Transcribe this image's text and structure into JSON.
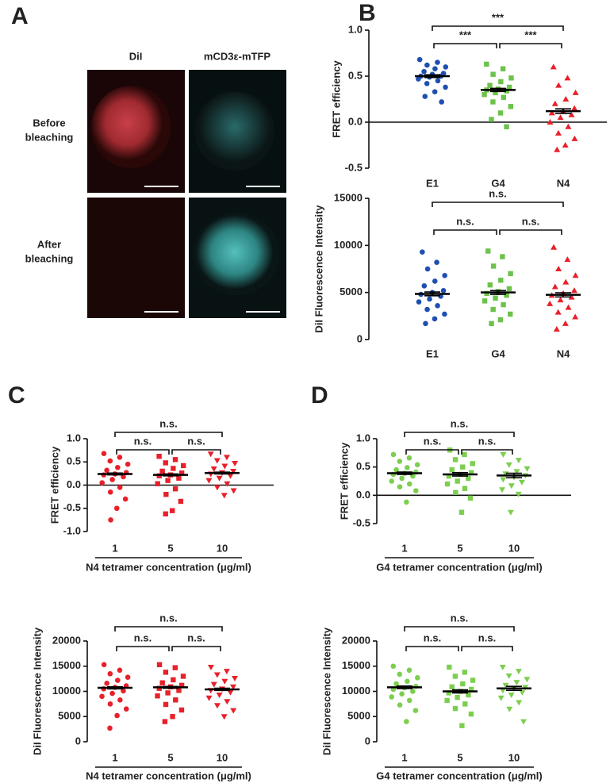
{
  "panel_labels": [
    "A",
    "B",
    "C",
    "D"
  ],
  "panel_a": {
    "columns": [
      "DiI",
      "mCD3ε-mTFP"
    ],
    "rows": [
      [
        "Before",
        "bleaching"
      ],
      [
        "After",
        "bleaching"
      ]
    ]
  },
  "chart_data": [
    {
      "type": "strip",
      "ylabel": "FRET efficiency",
      "categories": [
        "E1",
        "G4",
        "N4"
      ],
      "colors": [
        "#1f4fb0",
        "#6cc24a",
        "#e8202a"
      ],
      "markers": [
        "circle",
        "square",
        "triangle"
      ],
      "points": [
        [
          0.68,
          0.65,
          0.62,
          0.6,
          0.58,
          0.55,
          0.53,
          0.52,
          0.5,
          0.5,
          0.49,
          0.47,
          0.45,
          0.42,
          0.38,
          0.33,
          0.28,
          0.22
        ],
        [
          0.63,
          0.58,
          0.52,
          0.48,
          0.44,
          0.4,
          0.38,
          0.36,
          0.35,
          0.34,
          0.32,
          0.3,
          0.27,
          0.22,
          0.17,
          0.1,
          0.03,
          -0.05
        ],
        [
          0.6,
          0.48,
          0.4,
          0.32,
          0.25,
          0.2,
          0.15,
          0.12,
          0.1,
          0.08,
          0.05,
          0.0,
          -0.05,
          -0.12,
          -0.18,
          -0.25,
          -0.3
        ]
      ],
      "means": [
        0.5,
        0.35,
        0.12
      ],
      "sem": [
        0.015,
        0.017,
        0.025
      ],
      "ylim": [
        -0.5,
        1.0
      ],
      "yticks": [
        -0.5,
        {
          "value": 0,
          "label": "0.0"
        },
        0.5,
        {
          "value": 1,
          "label": "1.0"
        }
      ],
      "zero_line": true,
      "brackets": [
        {
          "from": 0,
          "to": 2,
          "label": "***"
        },
        {
          "from": 0,
          "to": 1,
          "label": "***"
        },
        {
          "from": 1,
          "to": 2,
          "label": "***"
        }
      ]
    },
    {
      "type": "strip",
      "ylabel": "DiI Fluorescence Intensity",
      "categories": [
        "E1",
        "G4",
        "N4"
      ],
      "colors": [
        "#1f4fb0",
        "#6cc24a",
        "#e8202a"
      ],
      "markers": [
        "circle",
        "square",
        "triangle"
      ],
      "points": [
        [
          9300,
          8200,
          7500,
          6800,
          6200,
          5700,
          5200,
          5000,
          4800,
          4600,
          4300,
          4000,
          3600,
          3200,
          2700,
          2200,
          1700
        ],
        [
          9400,
          8800,
          7800,
          7000,
          6300,
          5800,
          5400,
          5100,
          4900,
          4700,
          4400,
          4100,
          3700,
          3200,
          2700,
          2100,
          1700
        ],
        [
          9800,
          8500,
          7500,
          6800,
          6100,
          5600,
          5200,
          4900,
          4700,
          4500,
          4200,
          3800,
          3400,
          2900,
          2400,
          1700,
          1100
        ]
      ],
      "means": [
        4850,
        5000,
        4750
      ],
      "sem": [
        200,
        200,
        220
      ],
      "ylim": [
        0,
        15000
      ],
      "yticks": [
        0,
        5000,
        10000,
        15000
      ],
      "zero_line": false,
      "brackets": [
        {
          "from": 0,
          "to": 2,
          "label": "n.s."
        },
        {
          "from": 0,
          "to": 1,
          "label": "n.s."
        },
        {
          "from": 1,
          "to": 2,
          "label": "n.s."
        }
      ]
    },
    {
      "type": "strip",
      "ylabel": "FRET efficiency",
      "xlabel": "N4 tetramer concentration (μg/ml)",
      "categories": [
        "1",
        "5",
        "10"
      ],
      "colors": [
        "#e8202a",
        "#e8202a",
        "#e8202a"
      ],
      "markers": [
        "circle",
        "square",
        "triangle-down"
      ],
      "points": [
        [
          0.68,
          0.6,
          0.52,
          0.45,
          0.38,
          0.32,
          0.27,
          0.24,
          0.22,
          0.18,
          0.12,
          0.05,
          -0.05,
          -0.15,
          -0.3,
          -0.5,
          -0.75
        ],
        [
          0.62,
          0.55,
          0.48,
          0.42,
          0.36,
          0.3,
          0.26,
          0.22,
          0.2,
          0.15,
          0.1,
          0.03,
          -0.08,
          -0.2,
          -0.35,
          -0.55,
          -0.62
        ],
        [
          0.67,
          0.6,
          0.53,
          0.47,
          0.41,
          0.35,
          0.3,
          0.27,
          0.24,
          0.2,
          0.15,
          0.1,
          0.03,
          -0.05,
          -0.12,
          -0.22
        ]
      ],
      "means": [
        0.24,
        0.22,
        0.26
      ],
      "sem": [
        0.02,
        0.02,
        0.02
      ],
      "ylim": [
        -1.0,
        1.0
      ],
      "yticks": [
        {
          "value": -1,
          "label": "-1.0"
        },
        -0.5,
        {
          "value": 0,
          "label": "0.0"
        },
        0.5,
        {
          "value": 1,
          "label": "1.0"
        }
      ],
      "zero_line": true,
      "brackets": [
        {
          "from": 0,
          "to": 2,
          "label": "n.s."
        },
        {
          "from": 0,
          "to": 1,
          "label": "n.s."
        },
        {
          "from": 1,
          "to": 2,
          "label": "n.s."
        }
      ]
    },
    {
      "type": "strip",
      "ylabel": "DiI Fluorescence Intensity",
      "xlabel": "N4 tetramer concentration (μg/ml)",
      "categories": [
        "1",
        "5",
        "10"
      ],
      "colors": [
        "#e8202a",
        "#e8202a",
        "#e8202a"
      ],
      "markers": [
        "circle",
        "square",
        "triangle-down"
      ],
      "points": [
        [
          15300,
          14200,
          13500,
          12800,
          12200,
          11600,
          11100,
          10800,
          10500,
          10100,
          9600,
          9000,
          8300,
          7500,
          6500,
          5200,
          2700
        ],
        [
          15300,
          14700,
          13800,
          13000,
          12300,
          11700,
          11200,
          10900,
          10600,
          10200,
          9700,
          9100,
          8300,
          7400,
          6300,
          5000,
          4000
        ],
        [
          14800,
          14000,
          13300,
          12600,
          12000,
          11400,
          10900,
          10500,
          10200,
          9800,
          9300,
          8700,
          8000,
          7200,
          6200,
          5000
        ]
      ],
      "means": [
        10700,
        10800,
        10400
      ],
      "sem": [
        200,
        180,
        220
      ],
      "ylim": [
        0,
        20000
      ],
      "yticks": [
        0,
        5000,
        10000,
        15000,
        20000
      ],
      "zero_line": false,
      "brackets": [
        {
          "from": 0,
          "to": 2,
          "label": "n.s."
        },
        {
          "from": 0,
          "to": 1,
          "label": "n.s."
        },
        {
          "from": 1,
          "to": 2,
          "label": "n.s."
        }
      ]
    },
    {
      "type": "strip",
      "ylabel": "FRET efficiency",
      "xlabel": "G4 tetramer concentration (μg/ml)",
      "categories": [
        "1",
        "5",
        "10"
      ],
      "colors": [
        "#7ccf4e",
        "#7ccf4e",
        "#7ccf4e"
      ],
      "markers": [
        "circle",
        "square",
        "triangle-down"
      ],
      "points": [
        [
          0.72,
          0.66,
          0.6,
          0.54,
          0.49,
          0.45,
          0.41,
          0.39,
          0.37,
          0.34,
          0.3,
          0.25,
          0.2,
          0.15,
          0.08,
          -0.12
        ],
        [
          0.8,
          0.72,
          0.63,
          0.56,
          0.5,
          0.45,
          0.4,
          0.37,
          0.34,
          0.3,
          0.25,
          0.2,
          0.12,
          0.05,
          -0.05,
          -0.3
        ],
        [
          0.72,
          0.62,
          0.54,
          0.47,
          0.42,
          0.38,
          0.35,
          0.32,
          0.28,
          0.23,
          0.17,
          0.1,
          0.02,
          -0.3
        ]
      ],
      "means": [
        0.39,
        0.37,
        0.35
      ],
      "sem": [
        0.02,
        0.03,
        0.04
      ],
      "ylim": [
        -0.5,
        1.0
      ],
      "yticks": [
        -0.5,
        {
          "value": 0,
          "label": "0.0"
        },
        0.5,
        {
          "value": 1,
          "label": "1.0"
        }
      ],
      "zero_line": true,
      "brackets": [
        {
          "from": 0,
          "to": 2,
          "label": "n.s."
        },
        {
          "from": 0,
          "to": 1,
          "label": "n.s."
        },
        {
          "from": 1,
          "to": 2,
          "label": "n.s."
        }
      ]
    },
    {
      "type": "strip",
      "ylabel": "DiI Fluorescence Intensity",
      "xlabel": "G4 tetramer concentration (μg/ml)",
      "categories": [
        "1",
        "5",
        "10"
      ],
      "colors": [
        "#7ccf4e",
        "#7ccf4e",
        "#7ccf4e"
      ],
      "markers": [
        "circle",
        "square",
        "triangle-down"
      ],
      "points": [
        [
          15000,
          14200,
          13400,
          12700,
          12000,
          11500,
          11000,
          10700,
          10400,
          10000,
          9500,
          8900,
          8200,
          7300,
          6200,
          4000
        ],
        [
          14800,
          13800,
          13000,
          12200,
          11500,
          10900,
          10400,
          10000,
          9700,
          9300,
          8800,
          8200,
          7500,
          6600,
          5500,
          3200
        ],
        [
          14800,
          14000,
          13100,
          12400,
          11800,
          11200,
          10800,
          10500,
          10200,
          9800,
          9300,
          8700,
          7800,
          6500,
          4000
        ]
      ],
      "means": [
        10800,
        10000,
        10600
      ],
      "sem": [
        250,
        300,
        400
      ],
      "ylim": [
        0,
        20000
      ],
      "yticks": [
        0,
        5000,
        10000,
        15000,
        20000
      ],
      "zero_line": false,
      "brackets": [
        {
          "from": 0,
          "to": 2,
          "label": "n.s."
        },
        {
          "from": 0,
          "to": 1,
          "label": "n.s."
        },
        {
          "from": 1,
          "to": 2,
          "label": "n.s."
        }
      ]
    }
  ]
}
